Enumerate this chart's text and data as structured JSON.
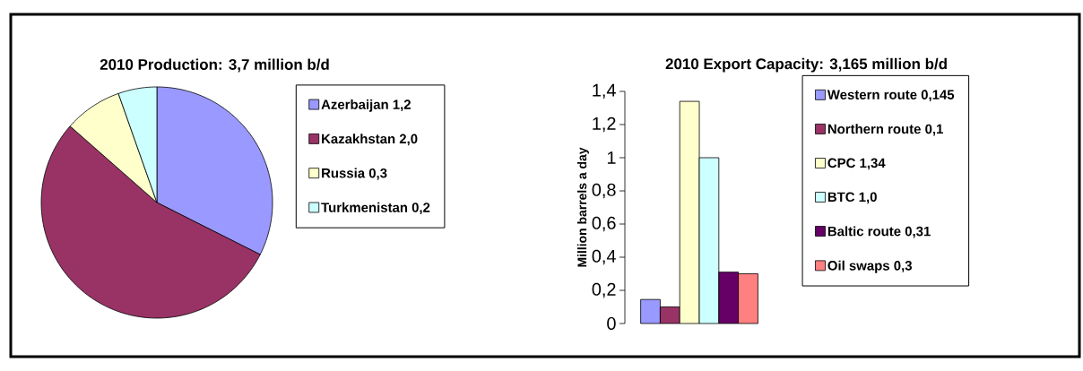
{
  "chart_data": [
    {
      "type": "pie",
      "title": "2010 Production: 3,7 million b/d",
      "categories": [
        "Azerbaijan 1,2",
        "Kazakhstan 2,0",
        "Russia 0,3",
        "Turkmenistan 0,2"
      ],
      "values": [
        1.2,
        2.0,
        0.3,
        0.2
      ],
      "colors": [
        "#9999ff",
        "#993366",
        "#ffffcc",
        "#ccffff"
      ],
      "legend": "right"
    },
    {
      "type": "bar",
      "title": "2010 Export Capacity: 3,165 million b/d",
      "ylabel": "Million barrels a day",
      "categories": [
        null
      ],
      "legend": "right",
      "grid": false,
      "ylim": [
        0,
        1.4
      ],
      "yticks": [
        0,
        {
          "value": 0.2,
          "label": "0,2"
        },
        {
          "value": 0.4,
          "label": "0,4"
        },
        {
          "value": 0.6,
          "label": "0,6"
        },
        {
          "value": 0.8,
          "label": "0,8"
        },
        1,
        {
          "value": 1.2,
          "label": "1,2"
        },
        {
          "value": 1.4,
          "label": "1,4"
        }
      ],
      "series": [
        {
          "name": "Western route 0,145",
          "color": "#9999ff",
          "values": [
            0.145
          ]
        },
        {
          "name": "Northern route 0,1",
          "color": "#993366",
          "values": [
            0.1
          ]
        },
        {
          "name": "CPC 1,34",
          "color": "#ffffcc",
          "values": [
            1.34
          ]
        },
        {
          "name": "BTC 1,0",
          "color": "#ccffff",
          "values": [
            1.0
          ]
        },
        {
          "name": "Baltic route 0,31",
          "color": "#660066",
          "values": [
            0.31
          ]
        },
        {
          "name": "Oil swaps 0,3",
          "color": "#ff8080",
          "values": [
            0.3
          ]
        }
      ]
    }
  ]
}
